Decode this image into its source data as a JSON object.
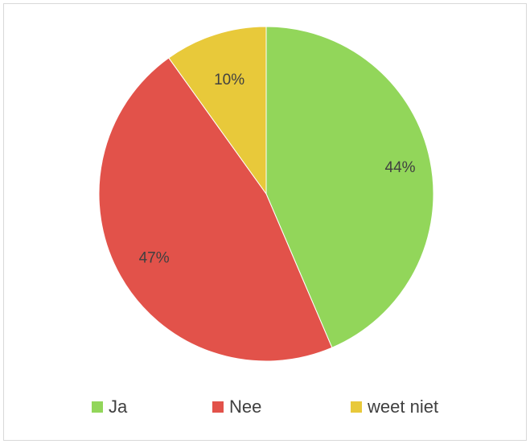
{
  "chart_data": {
    "type": "pie",
    "slices": [
      {
        "label": "Ja",
        "value": 44,
        "display": "44%",
        "color": "#92d65a"
      },
      {
        "label": "Nee",
        "value": 47,
        "display": "47%",
        "color": "#e2524a"
      },
      {
        "label": "weet niet",
        "value": 10,
        "display": "10%",
        "color": "#e8c93a"
      }
    ],
    "start_angle": "12 o'clock",
    "direction": "clockwise",
    "legend_position": "bottom"
  }
}
